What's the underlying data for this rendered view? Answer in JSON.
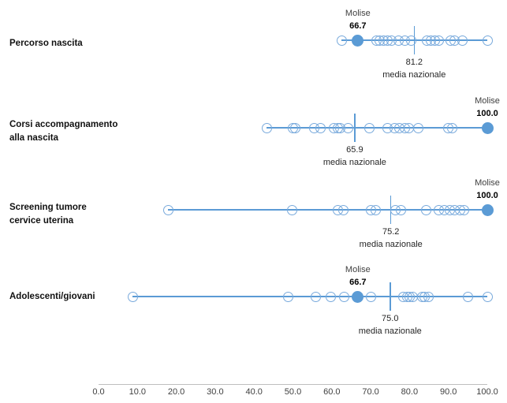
{
  "chart_data": {
    "type": "scatter",
    "description": "Dot plot of regional indicator values with Molise highlighted and national average marked",
    "molise_name": "Molise",
    "media_caption": "media nazionale",
    "axis": {
      "min": 0.0,
      "max": 100.0,
      "tick_step": 10.0,
      "tick_labels": [
        "0.0",
        "10.0",
        "20.0",
        "30.0",
        "40.0",
        "50.0",
        "60.0",
        "70.0",
        "80.0",
        "90.0",
        "100.0"
      ]
    },
    "colors": {
      "accent": "#5B9BD5",
      "open_circle_stroke": "#79AADC",
      "axis_line": "#BFBFBF",
      "tick_text": "#404040",
      "label_text": "#111111"
    },
    "rows": [
      {
        "label": "Percorso nascita",
        "label_lines": [
          "Percorso nascita"
        ],
        "molise_value": 66.7,
        "molise_label": "66.7",
        "national_average": 81.2,
        "national_average_label": "81.2",
        "region_values": [
          62.5,
          71.4,
          72.4,
          73.4,
          74.4,
          75.4,
          77.1,
          78.8,
          80.5,
          84.5,
          85.5,
          86.5,
          87.5,
          90.5,
          91.5,
          93.7,
          100.0
        ]
      },
      {
        "label": "Corsi accompagnamento alla nascita",
        "label_lines": [
          "Corsi accompagnamento",
          "alla nascita"
        ],
        "molise_value": 100.0,
        "molise_label": "100.0",
        "national_average": 65.9,
        "national_average_label": "65.9",
        "region_values": [
          43.3,
          50.0,
          50.7,
          55.4,
          57.1,
          60.5,
          61.5,
          62.2,
          64.2,
          69.6,
          74.4,
          76.1,
          77.4,
          78.8,
          79.8,
          82.2,
          89.9,
          91.0
        ]
      },
      {
        "label": "Screening tumore cervice uterina",
        "label_lines": [
          "Screening tumore",
          "cervice uterina"
        ],
        "molise_value": 100.0,
        "molise_label": "100.0",
        "national_average": 75.2,
        "national_average_label": "75.2",
        "region_values": [
          17.9,
          49.7,
          61.5,
          62.9,
          70.0,
          71.3,
          76.4,
          77.7,
          84.2,
          87.6,
          88.9,
          90.3,
          91.6,
          93.0,
          94.0
        ]
      },
      {
        "label": "Adolescenti/giovani",
        "label_lines": [
          "Adolescenti/giovani"
        ],
        "molise_value": 66.7,
        "molise_label": "66.7",
        "national_average": 75.0,
        "national_average_label": "75.0",
        "region_values": [
          8.8,
          48.7,
          55.8,
          59.8,
          63.2,
          70.0,
          78.4,
          79.4,
          80.1,
          80.8,
          83.2,
          83.8,
          84.9,
          95.0,
          100.0
        ]
      }
    ]
  }
}
